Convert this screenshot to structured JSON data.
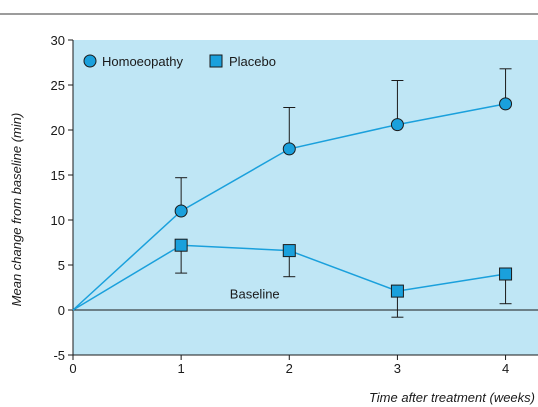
{
  "chart_data": {
    "type": "line",
    "title": "",
    "xlabel": "Time after treatment (weeks)",
    "ylabel": "Mean change from baseline (min)",
    "x": [
      0,
      1,
      2,
      3,
      4
    ],
    "xlim": [
      0,
      4.3
    ],
    "ylim": [
      -5,
      30
    ],
    "xticks": [
      0,
      1,
      2,
      3,
      4
    ],
    "yticks": [
      -5,
      0,
      5,
      10,
      15,
      20,
      25,
      30
    ],
    "grid": false,
    "legend_placement": "top-left",
    "background_color": "#bfe6f5",
    "series": [
      {
        "name": "Homoeopathy",
        "marker": "circle",
        "color": "#1aa0dc",
        "values": [
          0,
          11.0,
          17.9,
          20.6,
          22.9
        ],
        "error_upper": [
          null,
          14.7,
          22.5,
          25.5,
          26.8
        ],
        "error_lower": [
          null,
          null,
          null,
          null,
          null
        ]
      },
      {
        "name": "Placebo",
        "marker": "square",
        "color": "#1aa0dc",
        "values": [
          0,
          7.2,
          6.6,
          2.1,
          4.0
        ],
        "error_upper": [
          null,
          null,
          null,
          null,
          null
        ],
        "error_lower": [
          null,
          4.1,
          3.7,
          -0.8,
          0.7
        ]
      }
    ],
    "annotations": [
      {
        "text": "Baseline",
        "x": 1.45,
        "y": 1.3
      }
    ]
  }
}
